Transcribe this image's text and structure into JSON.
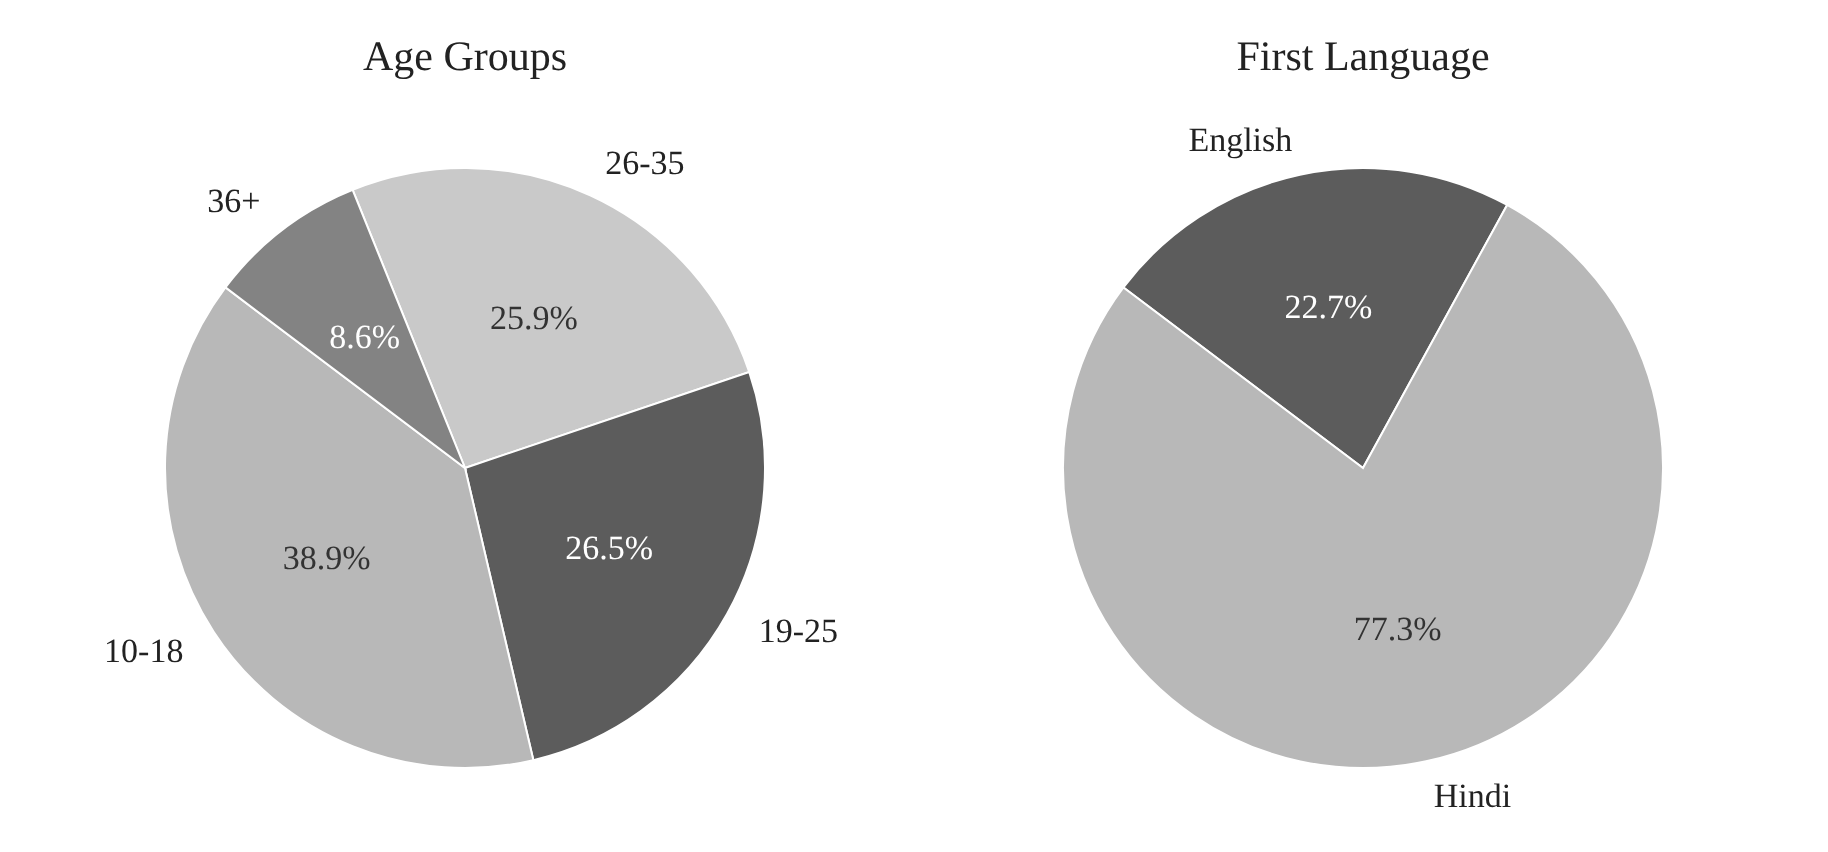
{
  "chart_data": [
    {
      "type": "pie",
      "title": "Age Groups",
      "categories": [
        "26-35",
        "19-25",
        "10-18",
        "36+"
      ],
      "values": [
        25.9,
        26.5,
        38.9,
        8.6
      ],
      "colors": [
        "#c9c9c9",
        "#5c5c5c",
        "#b8b8b8",
        "#838383"
      ],
      "value_labels": [
        "25.9%",
        "26.5%",
        "38.9%",
        "8.6%"
      ]
    },
    {
      "type": "pie",
      "title": "First Language",
      "categories": [
        "English",
        "Hindi"
      ],
      "values": [
        22.7,
        77.3
      ],
      "colors": [
        "#5c5c5c",
        "#b8b8b8"
      ],
      "value_labels": [
        "22.7%",
        "77.3%"
      ]
    }
  ]
}
